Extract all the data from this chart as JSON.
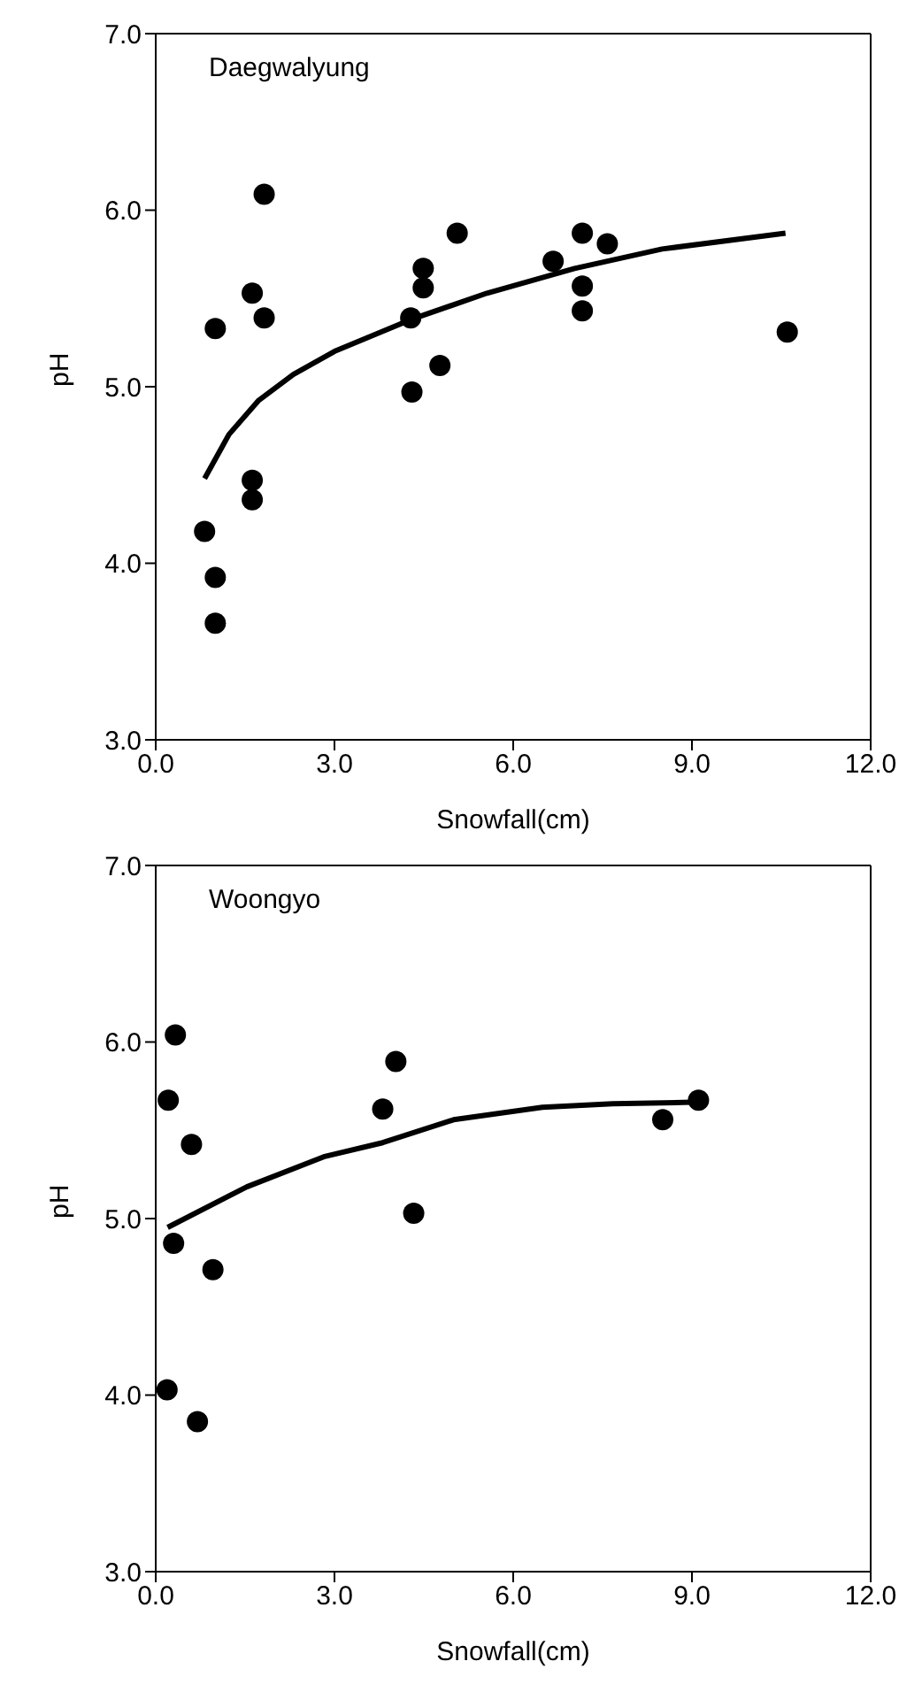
{
  "chart_data": [
    {
      "type": "scatter",
      "title": "Daegwalyung",
      "xlabel": "Snowfall(cm)",
      "ylabel": "pH",
      "xlim": [
        0,
        12
      ],
      "xticks": [
        {
          "value": 0,
          "label": "0.0"
        },
        {
          "value": 3,
          "label": "3.0"
        },
        {
          "value": 6,
          "label": "6.0"
        },
        {
          "value": 9,
          "label": "9.0"
        },
        {
          "value": 12,
          "label": "12.0"
        }
      ],
      "ylim": [
        3,
        7
      ],
      "yticks": [
        {
          "value": 3,
          "label": "3.0"
        },
        {
          "value": 4,
          "label": "4.0"
        },
        {
          "value": 5,
          "label": "5.0"
        },
        {
          "value": 6,
          "label": "6.0"
        },
        {
          "value": 7,
          "label": "7.0"
        }
      ],
      "grid": false,
      "legend": false,
      "series": [
        {
          "marker": "circle",
          "color": "#000000",
          "x": [
            0.82,
            1.0,
            1.0,
            1.0,
            1.62,
            1.62,
            1.62,
            1.82,
            1.82,
            4.28,
            4.3,
            4.49,
            4.49,
            4.77,
            5.06,
            6.67,
            7.16,
            7.16,
            7.16,
            7.58,
            10.6
          ],
          "values": [
            4.18,
            3.92,
            3.66,
            5.33,
            5.53,
            4.47,
            4.36,
            6.09,
            5.39,
            5.39,
            4.97,
            5.67,
            5.56,
            5.12,
            5.87,
            5.71,
            5.87,
            5.57,
            5.43,
            5.81,
            5.31
          ]
        },
        {
          "type": "line",
          "marker": "none",
          "color": "#000000",
          "x": [
            0.82,
            1.23,
            1.72,
            2.31,
            3.0,
            4.28,
            5.56,
            7.03,
            8.5,
            10.57
          ],
          "values": [
            4.48,
            4.73,
            4.92,
            5.07,
            5.2,
            5.38,
            5.53,
            5.67,
            5.78,
            5.87
          ]
        }
      ]
    },
    {
      "type": "scatter",
      "title": "Woongyo",
      "xlabel": "Snowfall(cm)",
      "ylabel": "pH",
      "xlim": [
        0,
        12
      ],
      "xticks": [
        {
          "value": 0,
          "label": "0.0"
        },
        {
          "value": 3,
          "label": "3.0"
        },
        {
          "value": 6,
          "label": "6.0"
        },
        {
          "value": 9,
          "label": "9.0"
        },
        {
          "value": 12,
          "label": "12.0"
        }
      ],
      "ylim": [
        3,
        7
      ],
      "yticks": [
        {
          "value": 3,
          "label": "3.0"
        },
        {
          "value": 4,
          "label": "4.0"
        },
        {
          "value": 5,
          "label": "5.0"
        },
        {
          "value": 6,
          "label": "6.0"
        },
        {
          "value": 7,
          "label": "7.0"
        }
      ],
      "grid": false,
      "legend": false,
      "series": [
        {
          "marker": "circle",
          "color": "#000000",
          "x": [
            0.33,
            0.21,
            0.6,
            0.3,
            0.96,
            0.19,
            0.7,
            3.81,
            4.03,
            4.33,
            8.51,
            9.11
          ],
          "values": [
            6.04,
            5.67,
            5.42,
            4.86,
            4.71,
            4.03,
            3.85,
            5.62,
            5.89,
            5.03,
            5.56,
            5.67
          ]
        },
        {
          "type": "line",
          "marker": "none",
          "color": "#000000",
          "x": [
            0.2,
            1.53,
            2.82,
            3.81,
            5.0,
            6.49,
            7.67,
            9.16
          ],
          "values": [
            4.95,
            5.18,
            5.35,
            5.43,
            5.56,
            5.63,
            5.65,
            5.66
          ]
        }
      ]
    }
  ]
}
